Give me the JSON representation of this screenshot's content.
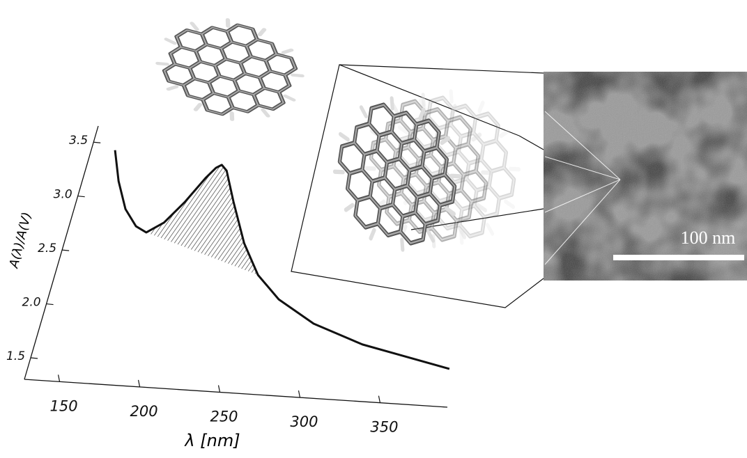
{
  "chart_data": {
    "type": "line",
    "x_label": "λ [nm]",
    "y_label": "A(λ)/A(V)",
    "x": [
      142.6,
      150.3,
      159.5,
      169,
      176.4,
      185.5,
      194.6,
      203,
      207.6,
      210.6,
      214.6,
      224.4,
      238.3,
      252.4,
      269.5,
      295.2,
      328.8,
      386.4
    ],
    "values": [
      3.44,
      3.16,
      2.91,
      2.76,
      2.71,
      2.81,
      3.01,
      3.24,
      3.34,
      3.37,
      3.32,
      3.04,
      2.67,
      2.39,
      2.18,
      1.98,
      1.82,
      1.65
    ],
    "color": "#111111",
    "xlim": [
      128,
      392
    ],
    "xticks": [
      150,
      200,
      250,
      300,
      350
    ],
    "ylim": [
      1.3,
      3.65
    ],
    "yticks": [
      1.5,
      {
        "value": 2,
        "label": "2.0"
      },
      2.5,
      {
        "value": 3,
        "label": "3.0"
      },
      3.5
    ]
  },
  "scale_bar_label": "100 nm"
}
